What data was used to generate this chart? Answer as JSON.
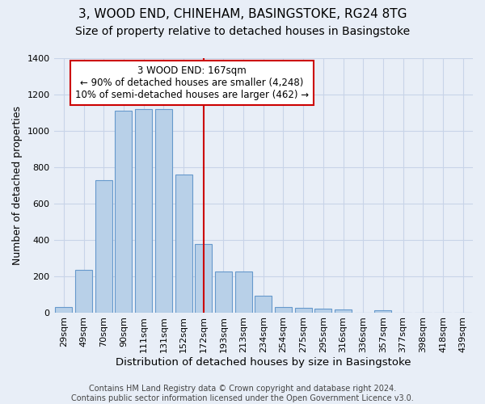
{
  "title1": "3, WOOD END, CHINEHAM, BASINGSTOKE, RG24 8TG",
  "title2": "Size of property relative to detached houses in Basingstoke",
  "xlabel": "Distribution of detached houses by size in Basingstoke",
  "ylabel": "Number of detached properties",
  "categories": [
    "29sqm",
    "49sqm",
    "70sqm",
    "90sqm",
    "111sqm",
    "131sqm",
    "152sqm",
    "172sqm",
    "193sqm",
    "213sqm",
    "234sqm",
    "254sqm",
    "275sqm",
    "295sqm",
    "316sqm",
    "336sqm",
    "357sqm",
    "377sqm",
    "398sqm",
    "418sqm",
    "439sqm"
  ],
  "values": [
    30,
    235,
    728,
    1107,
    1120,
    1120,
    760,
    375,
    225,
    225,
    90,
    30,
    25,
    22,
    15,
    0,
    12,
    0,
    0,
    0,
    0
  ],
  "bar_color": "#b8d0e8",
  "bar_edge_color": "#6699cc",
  "vline_x_index": 7,
  "vline_color": "#cc0000",
  "annotation_line1": "3 WOOD END: 167sqm",
  "annotation_line2": "← 90% of detached houses are smaller (4,248)",
  "annotation_line3": "10% of semi-detached houses are larger (462) →",
  "annotation_box_color": "#cc0000",
  "footnote": "Contains HM Land Registry data © Crown copyright and database right 2024.\nContains public sector information licensed under the Open Government Licence v3.0.",
  "ylim": [
    0,
    1400
  ],
  "bg_color": "#e8eef7",
  "plot_bg_color": "#e8eef7",
  "grid_color": "#c8d4e8",
  "title1_fontsize": 11,
  "title2_fontsize": 10,
  "xlabel_fontsize": 9.5,
  "ylabel_fontsize": 9,
  "tick_fontsize": 8,
  "footnote_fontsize": 7
}
